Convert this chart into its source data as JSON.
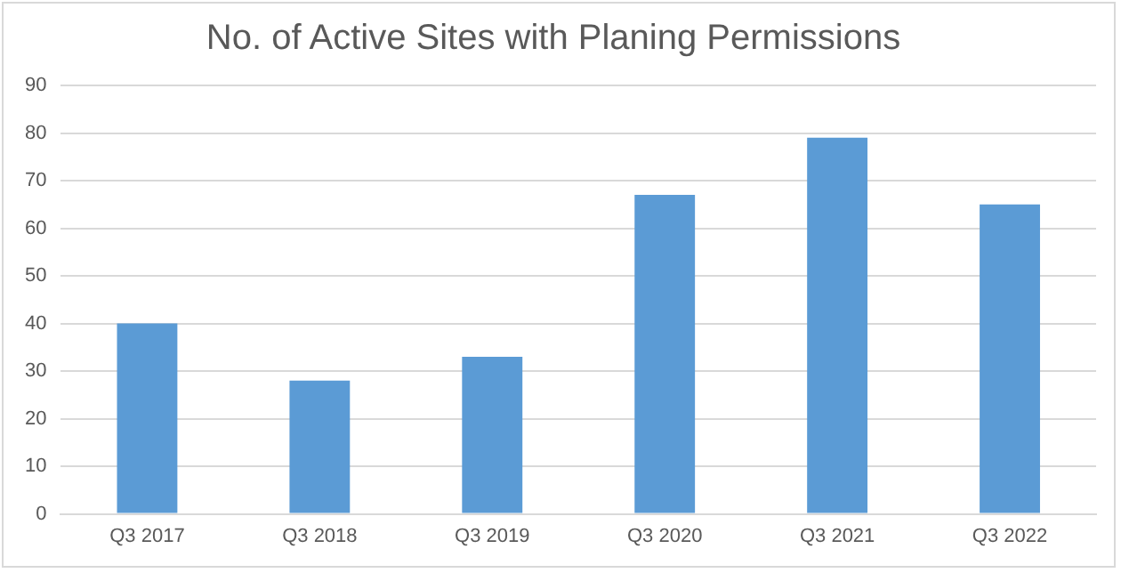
{
  "chart_data": {
    "type": "bar",
    "title": "No. of Active Sites with Planing Permissions",
    "categories": [
      "Q3 2017",
      "Q3 2018",
      "Q3 2019",
      "Q3 2020",
      "Q3 2021",
      "Q3 2022"
    ],
    "values": [
      40,
      28,
      33,
      67,
      79,
      65
    ],
    "color": "#5b9bd5",
    "ylim": [
      0,
      90
    ],
    "yticks": [
      0,
      10,
      20,
      30,
      40,
      50,
      60,
      70,
      80,
      90
    ],
    "grid": "y",
    "legend": false
  }
}
